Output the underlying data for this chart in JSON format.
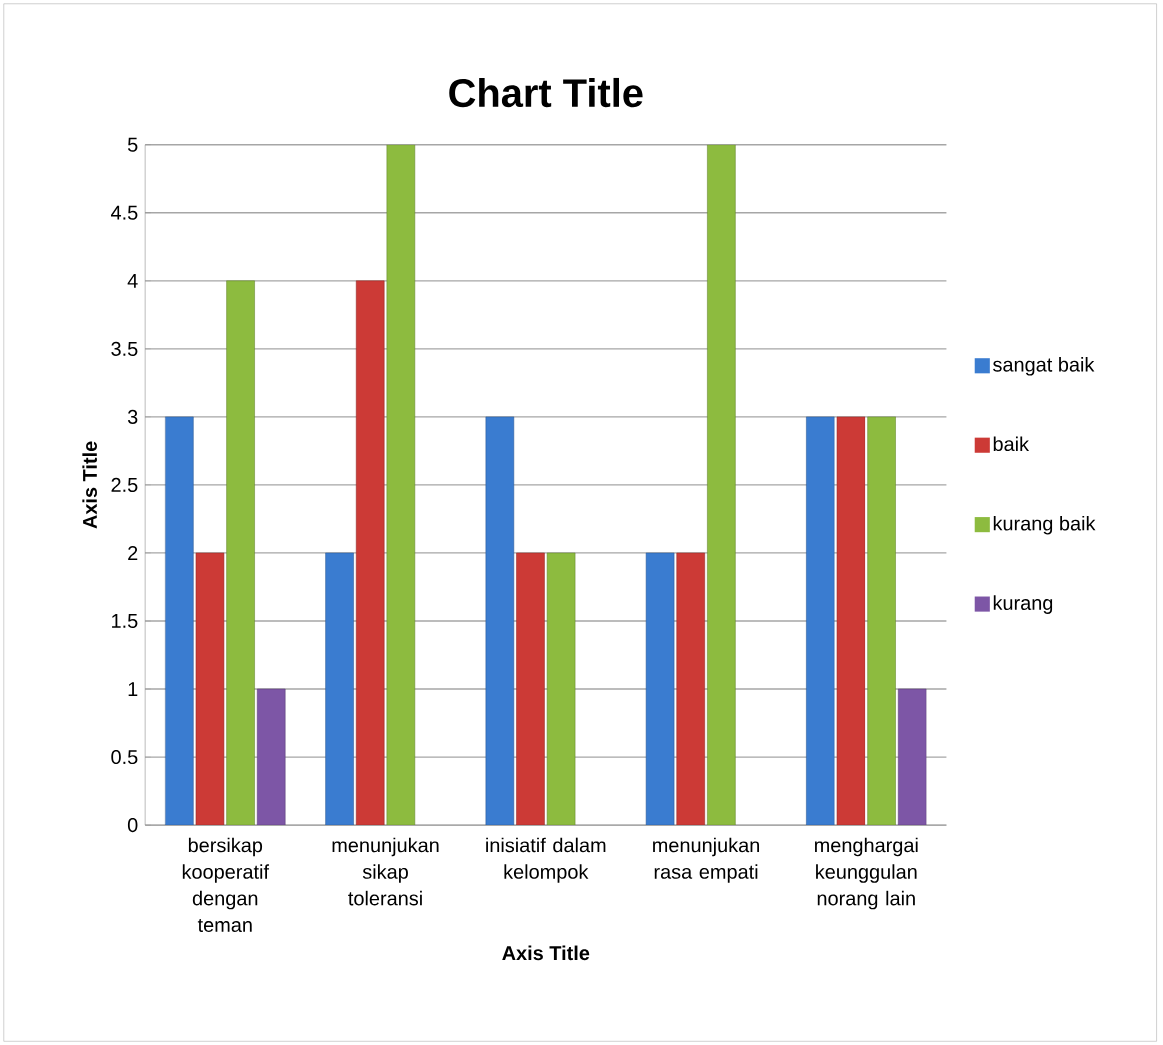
{
  "chart_data": {
    "type": "bar",
    "title": "Chart Title",
    "xlabel": "Axis Title",
    "ylabel": "Axis Title",
    "categories": [
      "bersikap kooperatif dengan teman",
      "menunjukan sikap toleransi",
      "inisiatif dalam kelompok",
      "menunjukan rasa empati",
      "menghargai keunggulan norang lain"
    ],
    "series": [
      {
        "name": "sangat baik",
        "color": "#3a7cd0",
        "values": [
          3,
          2,
          3,
          2,
          3
        ]
      },
      {
        "name": "baik",
        "color": "#cc3a36",
        "values": [
          2,
          4,
          2,
          2,
          3
        ]
      },
      {
        "name": "kurang baik",
        "color": "#8dbb3f",
        "values": [
          4,
          5,
          2,
          5,
          3
        ]
      },
      {
        "name": "kurang",
        "color": "#7d56a6",
        "values": [
          1,
          null,
          null,
          null,
          1
        ]
      }
    ],
    "ylim": [
      0,
      5
    ],
    "yticks": [
      0,
      0.5,
      1,
      1.5,
      2,
      2.5,
      3,
      3.5,
      4,
      4.5,
      5
    ],
    "grid": "y",
    "legend": "right"
  }
}
